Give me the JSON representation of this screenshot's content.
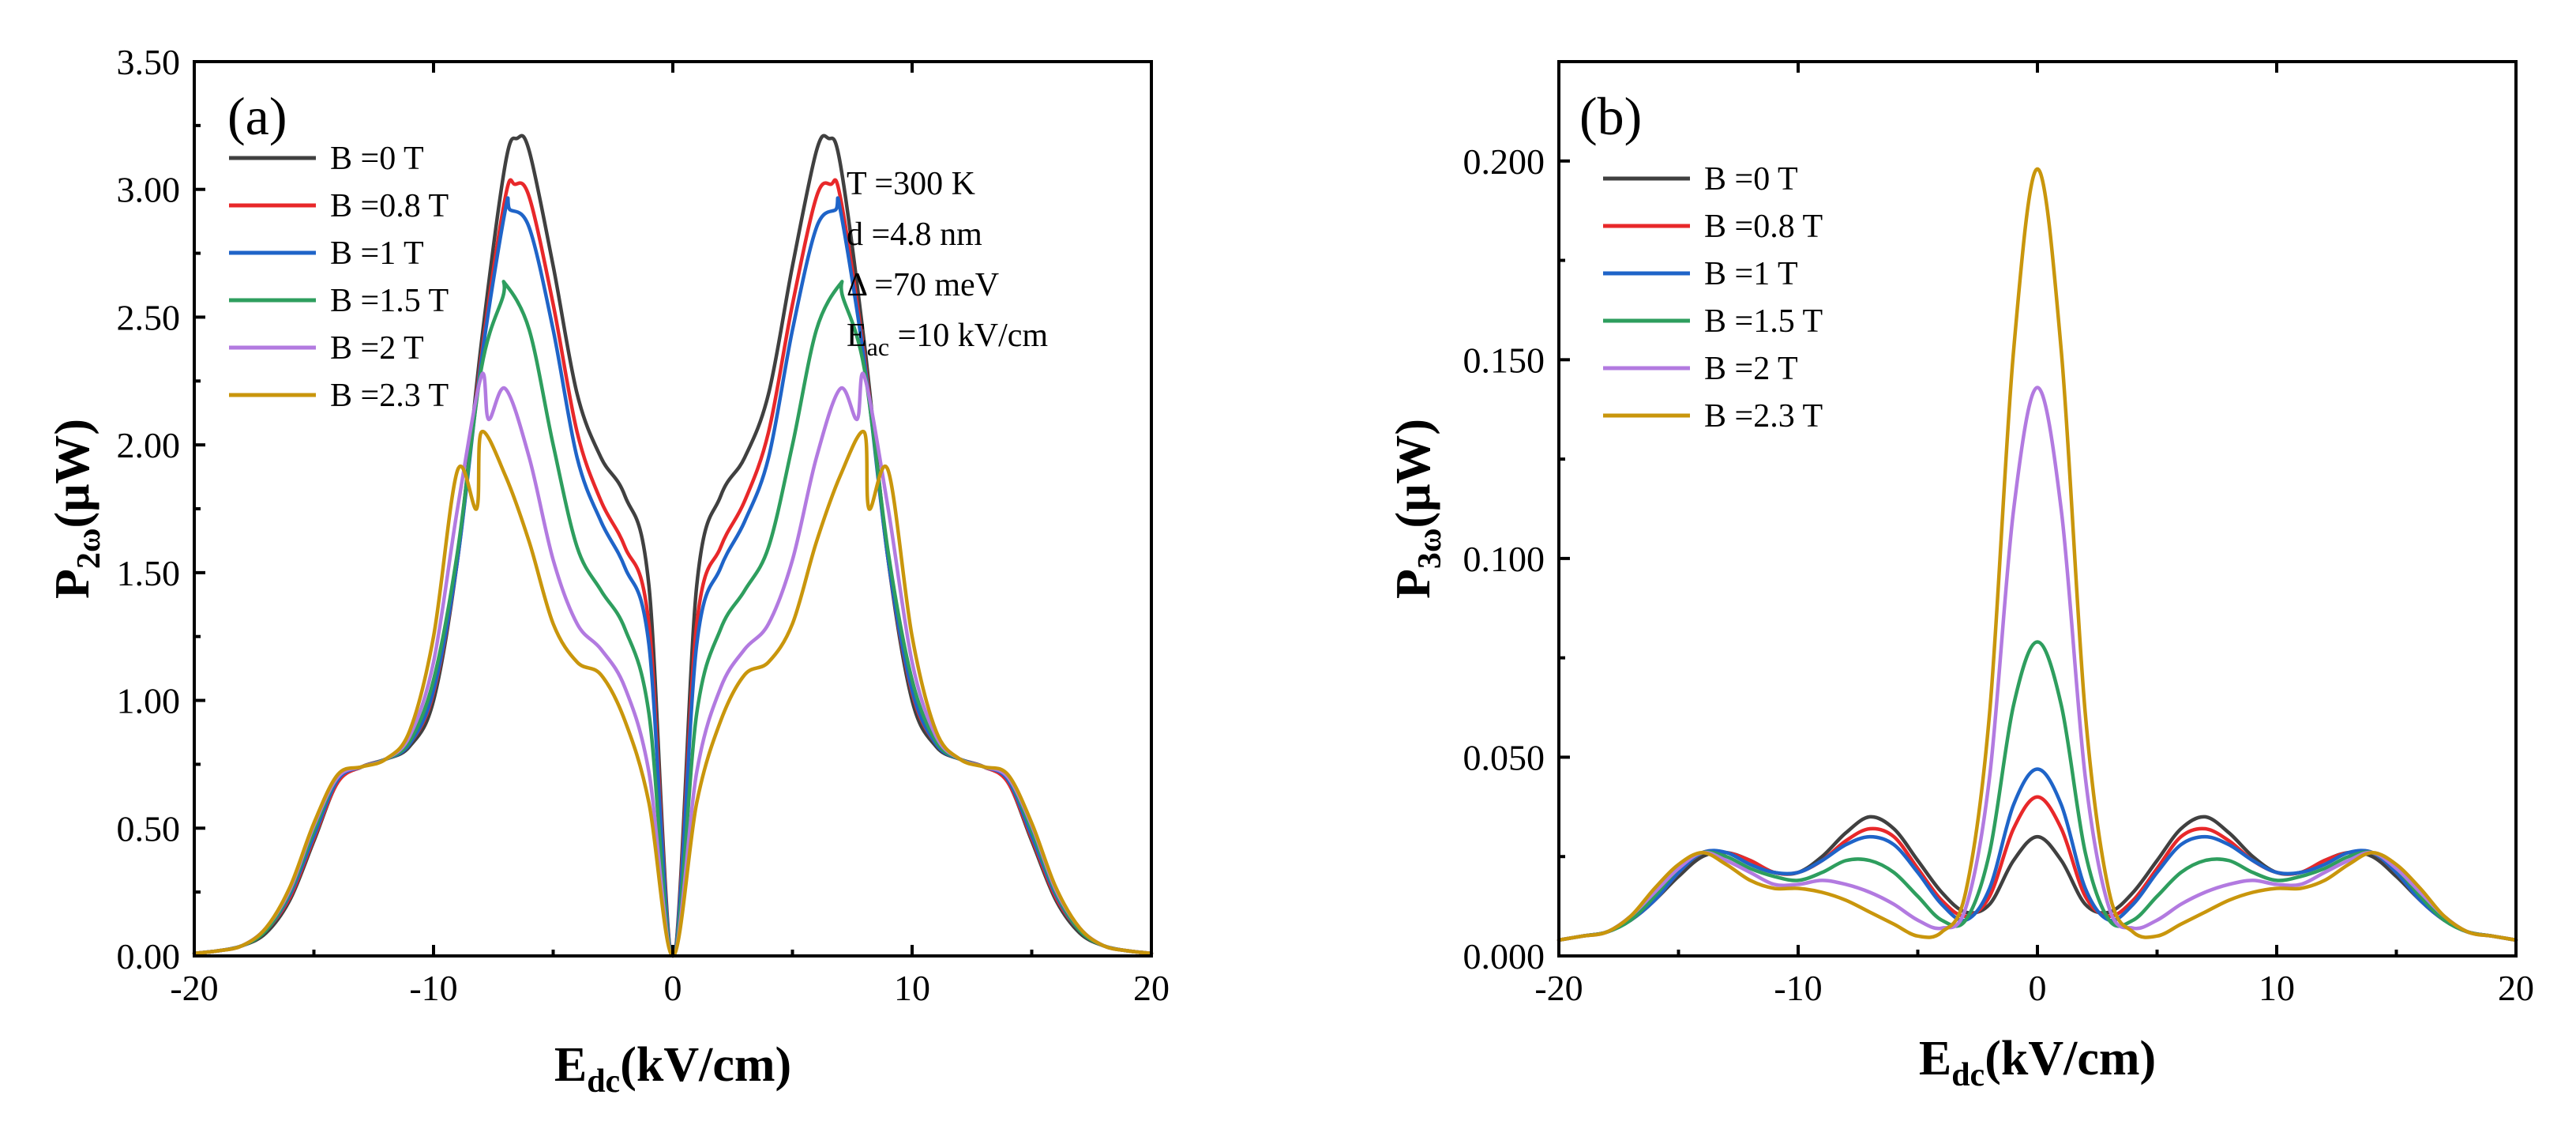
{
  "colors": {
    "B=0": "#404040",
    "B=0.8": "#e8282a",
    "B=1": "#1f64c8",
    "B=1.5": "#2e9e5e",
    "B=2": "#b27ae0",
    "B=2.3": "#c9960c"
  },
  "chart_data": [
    {
      "type": "line",
      "panel_label": "(a)",
      "xlabel": {
        "main": "E",
        "sub": "dc",
        "rest": "(kV/cm)"
      },
      "ylabel": {
        "main": "P",
        "sub": "2ω",
        "rest": "(μW)"
      },
      "xlim": [
        -20,
        20
      ],
      "ylim": [
        0,
        3.5
      ],
      "xticks": [
        -20,
        -10,
        0,
        10,
        20
      ],
      "xtick_labels": [
        "-20",
        "-10",
        "0",
        "10",
        "20"
      ],
      "yticks": [
        0,
        0.5,
        1.0,
        1.5,
        2.0,
        2.5,
        3.0,
        3.5
      ],
      "ytick_labels": [
        "0.00",
        "0.50",
        "1.00",
        "1.50",
        "2.00",
        "2.50",
        "3.00",
        "3.50"
      ],
      "grid": false,
      "legend_position": "top-left",
      "annotations": [
        {
          "main": "T =300 K"
        },
        {
          "main": "d =4.8 nm"
        },
        {
          "main": "Δ =70 meV"
        },
        {
          "main": "E",
          "sub": "ac",
          "rest": " =10 kV/cm"
        }
      ],
      "x": [
        0,
        1,
        2,
        3,
        4,
        5,
        6,
        6.5,
        7,
        8,
        9,
        10,
        11,
        12,
        13,
        14,
        15,
        16,
        17,
        18,
        19,
        20
      ],
      "series": [
        {
          "name": "B =0 T",
          "color_key": "B=0",
          "peak_x": 6.5,
          "values": [
            0.0,
            1.45,
            1.8,
            1.95,
            2.2,
            2.7,
            3.15,
            3.2,
            3.1,
            2.4,
            1.55,
            1.0,
            0.82,
            0.77,
            0.74,
            0.68,
            0.45,
            0.22,
            0.09,
            0.04,
            0.02,
            0.01
          ]
        },
        {
          "name": "B =0.8 T",
          "color_key": "B=0.8",
          "peak_x": 6.6,
          "values": [
            0.0,
            1.3,
            1.6,
            1.78,
            2.05,
            2.55,
            2.97,
            3.02,
            2.97,
            2.35,
            1.55,
            1.03,
            0.83,
            0.77,
            0.74,
            0.68,
            0.46,
            0.23,
            0.1,
            0.04,
            0.02,
            0.01
          ]
        },
        {
          "name": "B =1 T",
          "color_key": "B=1",
          "peak_x": 6.8,
          "values": [
            0.0,
            1.22,
            1.52,
            1.7,
            1.95,
            2.45,
            2.85,
            2.92,
            2.92,
            2.33,
            1.55,
            1.04,
            0.83,
            0.77,
            0.74,
            0.69,
            0.47,
            0.24,
            0.1,
            0.04,
            0.02,
            0.01
          ]
        },
        {
          "name": "B =1.5 T",
          "color_key": "B=1.5",
          "peak_x": 7.1,
          "values": [
            0.0,
            0.95,
            1.28,
            1.43,
            1.6,
            2.0,
            2.45,
            2.58,
            2.63,
            2.3,
            1.58,
            1.08,
            0.84,
            0.77,
            0.74,
            0.7,
            0.49,
            0.25,
            0.1,
            0.04,
            0.02,
            0.01
          ]
        },
        {
          "name": "B =2 T",
          "color_key": "B=2",
          "peak_x": 7.7,
          "values": [
            0.0,
            0.72,
            1.05,
            1.2,
            1.3,
            1.55,
            1.95,
            2.1,
            2.22,
            2.27,
            1.75,
            1.15,
            0.86,
            0.77,
            0.74,
            0.7,
            0.51,
            0.26,
            0.11,
            0.04,
            0.02,
            0.01
          ]
        },
        {
          "name": "B =2.3 T",
          "color_key": "B=2.3",
          "peak_x": 8.2,
          "values": [
            0.0,
            0.6,
            0.92,
            1.1,
            1.15,
            1.3,
            1.62,
            1.75,
            1.88,
            2.05,
            1.9,
            1.25,
            0.88,
            0.77,
            0.74,
            0.71,
            0.52,
            0.27,
            0.11,
            0.04,
            0.02,
            0.01
          ]
        }
      ]
    },
    {
      "type": "line",
      "panel_label": "(b)",
      "xlabel": {
        "main": "E",
        "sub": "dc",
        "rest": "(kV/cm)"
      },
      "ylabel": {
        "main": "P",
        "sub": "3ω",
        "rest": "(μW)"
      },
      "xlim": [
        -20,
        20
      ],
      "ylim": [
        0,
        0.225
      ],
      "xticks": [
        -20,
        -10,
        0,
        10,
        20
      ],
      "xtick_labels": [
        "-20",
        "-10",
        "0",
        "10",
        "20"
      ],
      "yticks": [
        0,
        0.05,
        0.1,
        0.15,
        0.2
      ],
      "ytick_labels": [
        "0.000",
        "0.050",
        "0.100",
        "0.150",
        "0.200"
      ],
      "grid": false,
      "legend_position": "top-left",
      "x": [
        0,
        1,
        2,
        3,
        4,
        5,
        6,
        7,
        8,
        9,
        10,
        11,
        12,
        13,
        14,
        15,
        16,
        17,
        18,
        19,
        20
      ],
      "series": [
        {
          "name": "B =0 T",
          "color_key": "B=0",
          "values": [
            0.03,
            0.024,
            0.013,
            0.011,
            0.016,
            0.024,
            0.032,
            0.035,
            0.031,
            0.025,
            0.021,
            0.021,
            0.024,
            0.026,
            0.025,
            0.02,
            0.014,
            0.009,
            0.006,
            0.005,
            0.004
          ]
        },
        {
          "name": "B =0.8 T",
          "color_key": "B=0.8",
          "values": [
            0.04,
            0.032,
            0.015,
            0.01,
            0.014,
            0.022,
            0.03,
            0.032,
            0.029,
            0.024,
            0.021,
            0.021,
            0.024,
            0.026,
            0.026,
            0.021,
            0.014,
            0.009,
            0.006,
            0.005,
            0.004
          ]
        },
        {
          "name": "B =1 T",
          "color_key": "B=1",
          "values": [
            0.047,
            0.038,
            0.017,
            0.009,
            0.013,
            0.021,
            0.028,
            0.03,
            0.028,
            0.024,
            0.021,
            0.021,
            0.023,
            0.026,
            0.026,
            0.021,
            0.014,
            0.009,
            0.006,
            0.005,
            0.004
          ]
        },
        {
          "name": "B =1.5 T",
          "color_key": "B=1.5",
          "values": [
            0.079,
            0.063,
            0.026,
            0.009,
            0.009,
            0.015,
            0.021,
            0.024,
            0.024,
            0.021,
            0.019,
            0.02,
            0.022,
            0.025,
            0.026,
            0.022,
            0.015,
            0.009,
            0.006,
            0.005,
            0.004
          ]
        },
        {
          "name": "B =2 T",
          "color_key": "B=2",
          "values": [
            0.143,
            0.112,
            0.045,
            0.012,
            0.007,
            0.009,
            0.013,
            0.016,
            0.018,
            0.019,
            0.018,
            0.018,
            0.021,
            0.024,
            0.026,
            0.022,
            0.016,
            0.01,
            0.006,
            0.005,
            0.004
          ]
        },
        {
          "name": "B =2.3 T",
          "color_key": "B=2.3",
          "values": [
            0.198,
            0.152,
            0.061,
            0.016,
            0.006,
            0.005,
            0.008,
            0.011,
            0.014,
            0.016,
            0.017,
            0.017,
            0.019,
            0.023,
            0.026,
            0.023,
            0.017,
            0.01,
            0.006,
            0.005,
            0.004
          ]
        }
      ]
    }
  ]
}
